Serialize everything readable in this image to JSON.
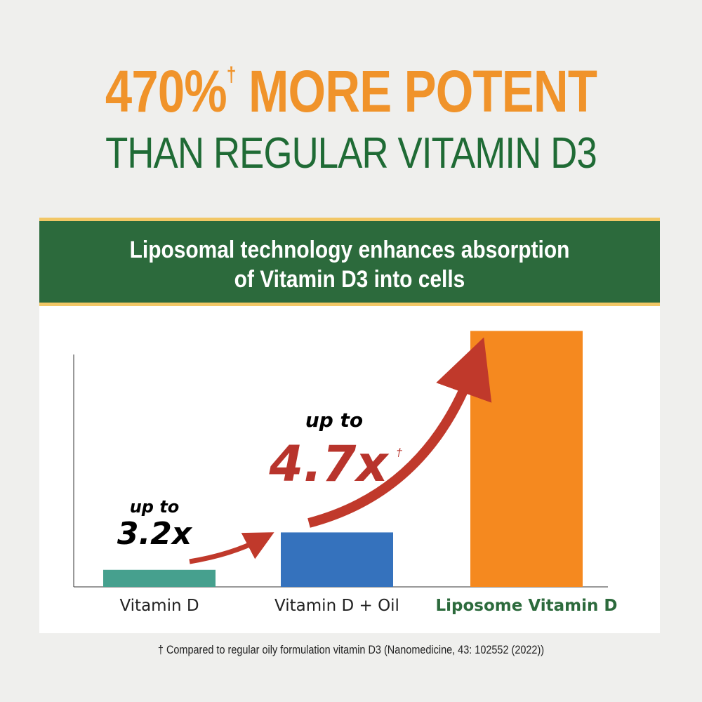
{
  "headline": {
    "big": "470%",
    "dagger": "†",
    "rest": " MORE POTENT",
    "sub": "THAN REGULAR VITAMIN D3"
  },
  "banner": {
    "line1": "Liposomal technology enhances absorption",
    "line2": "of Vitamin D3 into cells"
  },
  "chart_data": {
    "type": "bar",
    "categories": [
      "Vitamin D",
      "Vitamin D + Oil",
      "Liposome Vitamin D"
    ],
    "values": [
      1,
      3.2,
      15.04
    ],
    "ylim": [
      0,
      16.5
    ],
    "colors": [
      "#46a08e",
      "#3572bd",
      "#f5891f"
    ],
    "category_label_colors": [
      "#222222",
      "#222222",
      "#2c6a3c"
    ],
    "annotations": [
      {
        "prefix": "up to",
        "value": "3.2x",
        "color": "#111111"
      },
      {
        "prefix": "up to",
        "value": "4.7x",
        "dagger": "†",
        "color": "#b8342c"
      }
    ],
    "arrow_color": "#c0392b",
    "grid": false
  },
  "footnote": "† Compared to regular oily formulation vitamin D3 (Nanomedicine, 43: 102552 (2022))"
}
